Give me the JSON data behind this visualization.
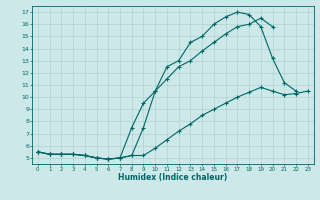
{
  "xlabel": "Humidex (Indice chaleur)",
  "bg_color": "#cce8e8",
  "grid_color": "#aacccc",
  "line_color": "#006666",
  "xlim": [
    -0.5,
    23.5
  ],
  "ylim": [
    4.5,
    17.5
  ],
  "yticks": [
    5,
    6,
    7,
    8,
    9,
    10,
    11,
    12,
    13,
    14,
    15,
    16,
    17
  ],
  "xticks": [
    0,
    1,
    2,
    3,
    4,
    5,
    6,
    7,
    8,
    9,
    10,
    11,
    12,
    13,
    14,
    15,
    16,
    17,
    18,
    19,
    20,
    21,
    22,
    23
  ],
  "line1_x": [
    0,
    1,
    2,
    3,
    4,
    5,
    6,
    7,
    8,
    9,
    10,
    11,
    12,
    13,
    14,
    15,
    16,
    17,
    18,
    19,
    20,
    21,
    22
  ],
  "line1_y": [
    5.5,
    5.3,
    5.3,
    5.3,
    5.2,
    5.0,
    4.9,
    5.0,
    5.2,
    7.5,
    10.5,
    12.5,
    13.0,
    14.5,
    15.0,
    16.0,
    16.6,
    17.0,
    16.8,
    15.8,
    13.2,
    11.2,
    10.5
  ],
  "line2_x": [
    0,
    1,
    2,
    3,
    4,
    5,
    6,
    7,
    8,
    9,
    10,
    11,
    12,
    13,
    14,
    15,
    16,
    17,
    18,
    19,
    20,
    21,
    22,
    23
  ],
  "line2_y": [
    5.5,
    5.3,
    5.3,
    5.3,
    5.2,
    5.0,
    4.9,
    5.0,
    5.2,
    5.2,
    5.8,
    6.5,
    7.2,
    7.8,
    8.5,
    9.0,
    9.5,
    10.0,
    10.4,
    10.8,
    10.5,
    10.2,
    10.3,
    10.5
  ],
  "line3_x": [
    0,
    1,
    2,
    3,
    4,
    5,
    6,
    7,
    8,
    9,
    10,
    11,
    12,
    13,
    14,
    15,
    16,
    17,
    18,
    19,
    20
  ],
  "line3_y": [
    5.5,
    5.3,
    5.3,
    5.3,
    5.2,
    5.0,
    4.9,
    5.0,
    7.5,
    9.5,
    10.5,
    11.5,
    12.5,
    13.0,
    13.8,
    14.5,
    15.2,
    15.8,
    16.0,
    16.5,
    15.8
  ]
}
